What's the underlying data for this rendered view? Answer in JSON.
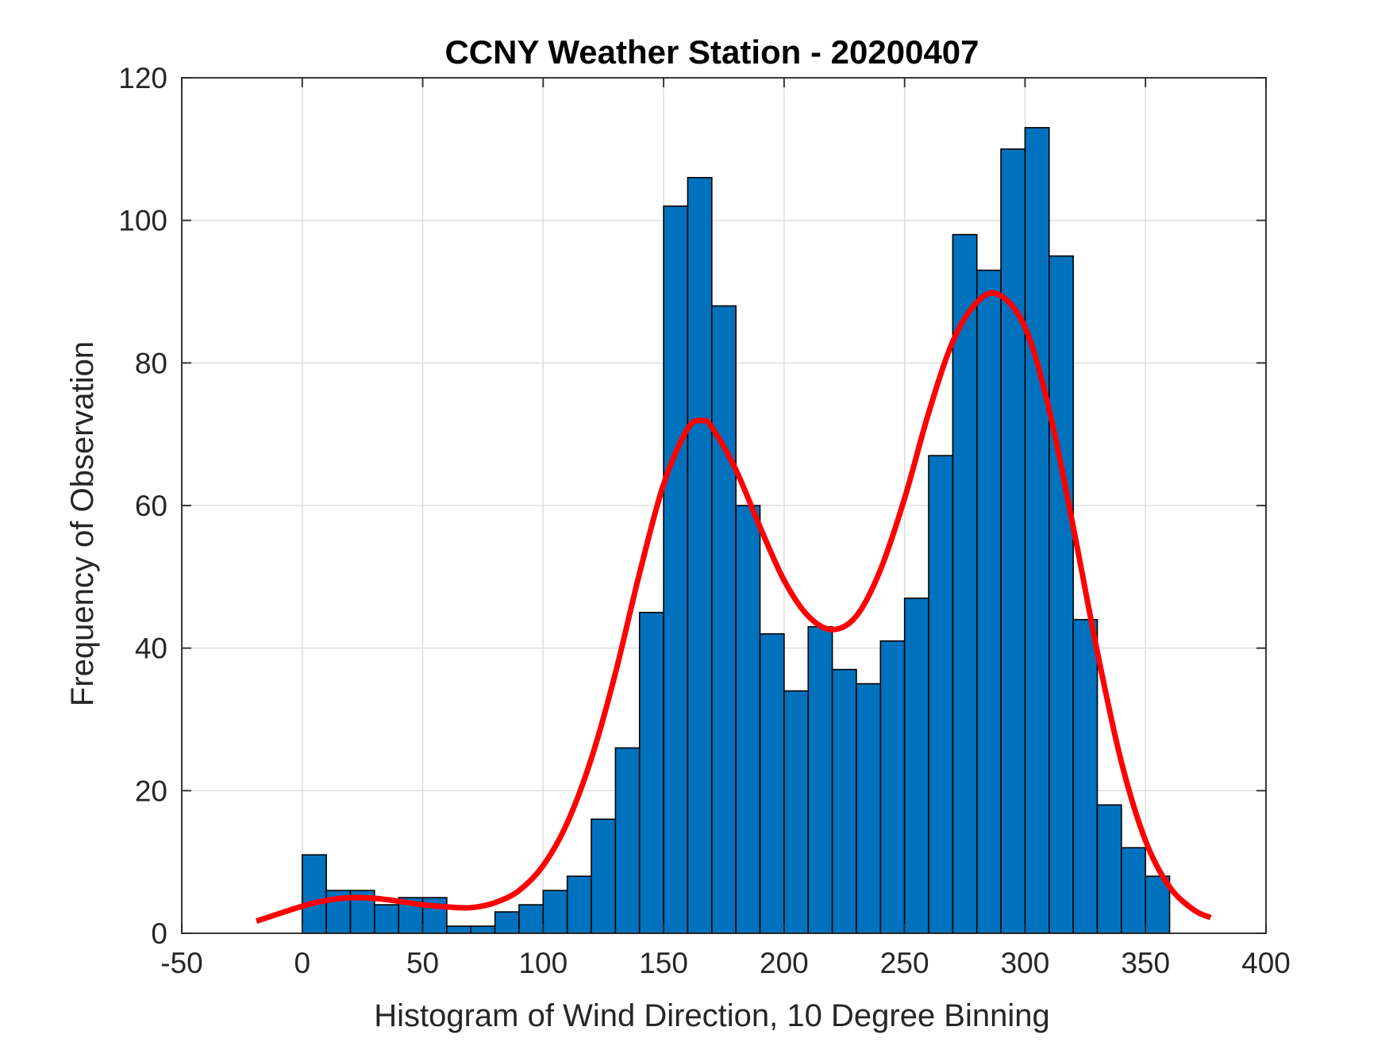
{
  "colors": {
    "bar_fill": "#0072BD",
    "bar_edge": "#000000",
    "fit_line": "#FF0000",
    "grid": "#dddddd",
    "axis": "#262626"
  },
  "chart_data": {
    "type": "bar",
    "title": "CCNY Weather Station - 20200407",
    "xlabel": "Histogram of Wind Direction, 10 Degree Binning",
    "ylabel": "Frequency of Observation",
    "xlim": [
      -50,
      400
    ],
    "ylim": [
      0,
      120
    ],
    "grid": true,
    "xticks": [
      -50,
      0,
      50,
      100,
      150,
      200,
      250,
      300,
      350,
      400
    ],
    "yticks": [
      0,
      20,
      40,
      60,
      80,
      100,
      120
    ],
    "bin_width": 10,
    "bins": [
      {
        "start": 0,
        "value": 11
      },
      {
        "start": 10,
        "value": 6
      },
      {
        "start": 20,
        "value": 6
      },
      {
        "start": 30,
        "value": 4
      },
      {
        "start": 40,
        "value": 5
      },
      {
        "start": 50,
        "value": 5
      },
      {
        "start": 60,
        "value": 1
      },
      {
        "start": 70,
        "value": 1
      },
      {
        "start": 80,
        "value": 3
      },
      {
        "start": 90,
        "value": 4
      },
      {
        "start": 100,
        "value": 6
      },
      {
        "start": 110,
        "value": 8
      },
      {
        "start": 120,
        "value": 16
      },
      {
        "start": 130,
        "value": 26
      },
      {
        "start": 140,
        "value": 45
      },
      {
        "start": 150,
        "value": 102
      },
      {
        "start": 160,
        "value": 106
      },
      {
        "start": 170,
        "value": 88
      },
      {
        "start": 180,
        "value": 60
      },
      {
        "start": 190,
        "value": 42
      },
      {
        "start": 200,
        "value": 34
      },
      {
        "start": 210,
        "value": 43
      },
      {
        "start": 220,
        "value": 37
      },
      {
        "start": 230,
        "value": 35
      },
      {
        "start": 240,
        "value": 41
      },
      {
        "start": 250,
        "value": 47
      },
      {
        "start": 260,
        "value": 67
      },
      {
        "start": 270,
        "value": 98
      },
      {
        "start": 280,
        "value": 93
      },
      {
        "start": 290,
        "value": 110
      },
      {
        "start": 300,
        "value": 113
      },
      {
        "start": 310,
        "value": 95
      },
      {
        "start": 320,
        "value": 44
      },
      {
        "start": 330,
        "value": 18
      },
      {
        "start": 340,
        "value": 12
      },
      {
        "start": 350,
        "value": 8
      }
    ],
    "fit_curve": {
      "name": "fit",
      "points": [
        [
          -19,
          1.7
        ],
        [
          0,
          3.8
        ],
        [
          10,
          4.6
        ],
        [
          20,
          5.0
        ],
        [
          30,
          4.9
        ],
        [
          40,
          4.5
        ],
        [
          50,
          4.0
        ],
        [
          60,
          3.7
        ],
        [
          70,
          3.6
        ],
        [
          80,
          4.3
        ],
        [
          90,
          6.0
        ],
        [
          100,
          9.5
        ],
        [
          110,
          15.5
        ],
        [
          120,
          24.5
        ],
        [
          130,
          36.5
        ],
        [
          140,
          50.5
        ],
        [
          150,
          63.0
        ],
        [
          160,
          70.8
        ],
        [
          166,
          71.9
        ],
        [
          170,
          71.0
        ],
        [
          180,
          65.0
        ],
        [
          190,
          57.0
        ],
        [
          200,
          49.5
        ],
        [
          210,
          44.5
        ],
        [
          220,
          42.6
        ],
        [
          230,
          44.5
        ],
        [
          240,
          51.0
        ],
        [
          250,
          61.0
        ],
        [
          260,
          73.0
        ],
        [
          270,
          83.0
        ],
        [
          280,
          88.5
        ],
        [
          289,
          89.6
        ],
        [
          300,
          85.0
        ],
        [
          310,
          73.5
        ],
        [
          320,
          57.0
        ],
        [
          330,
          39.5
        ],
        [
          340,
          24.0
        ],
        [
          350,
          13.0
        ],
        [
          360,
          6.5
        ],
        [
          370,
          3.3
        ],
        [
          377,
          2.2
        ]
      ]
    }
  }
}
